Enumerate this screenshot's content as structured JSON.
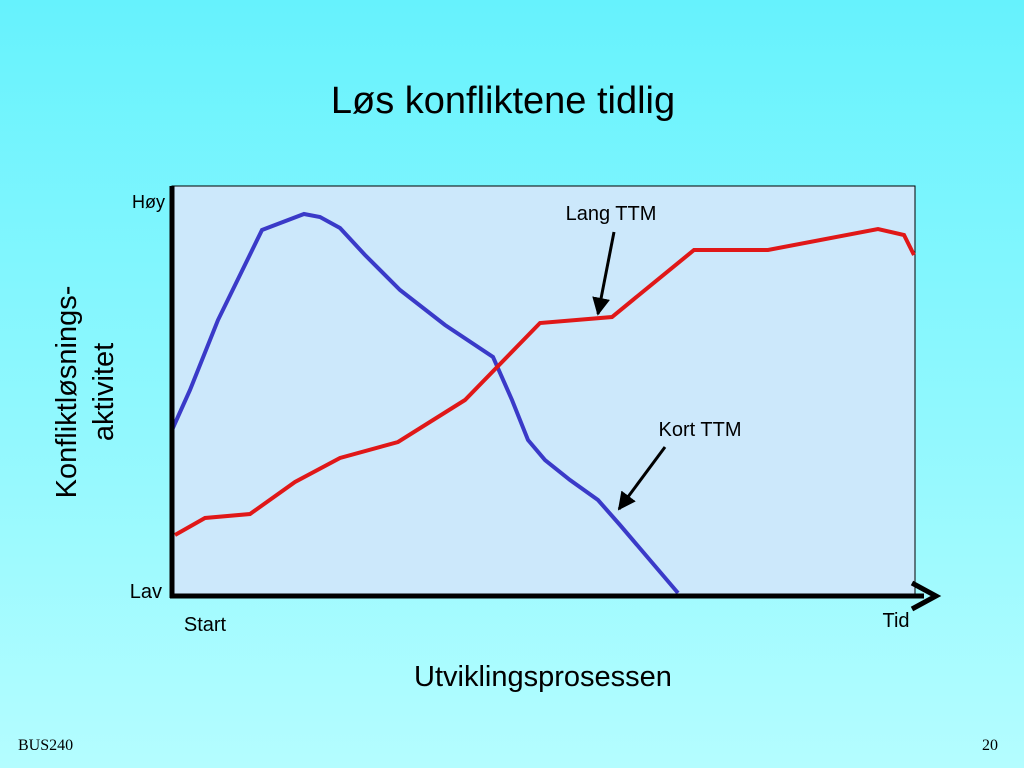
{
  "header": {
    "title": "Løs konfliktene tidlig"
  },
  "diagram": {
    "y_axis_label": [
      "Konfliktløsnings-",
      "aktivitet"
    ],
    "y_high": "Høy",
    "y_low": "Lav",
    "x_start": "Start",
    "x_end": "Tid",
    "x_axis_label": "Utviklingsprosessen",
    "annotations": [
      "Lang TTM",
      "Kort TTM"
    ]
  },
  "footer": {
    "course": "BUS240",
    "page_number": "20"
  }
}
